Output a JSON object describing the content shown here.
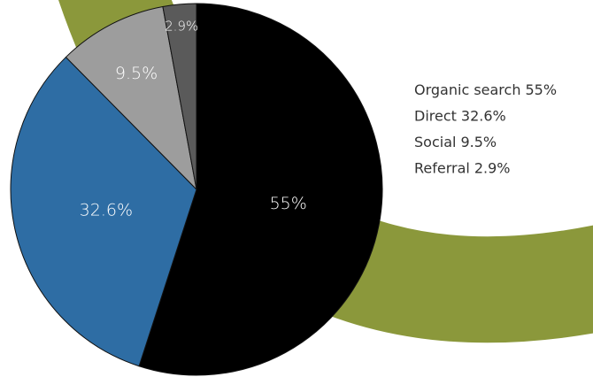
{
  "chart_data": {
    "type": "pie",
    "categories": [
      "Organic search",
      "Direct",
      "Social",
      "Referral"
    ],
    "values": [
      55,
      32.6,
      9.5,
      2.9
    ],
    "value_labels": [
      "55%",
      "32.6%",
      "9.5%",
      "2.9%"
    ],
    "colors": [
      "#000000",
      "#2e6da4",
      "#9d9d9d",
      "#5a5a5a"
    ],
    "legend": "right"
  }
}
